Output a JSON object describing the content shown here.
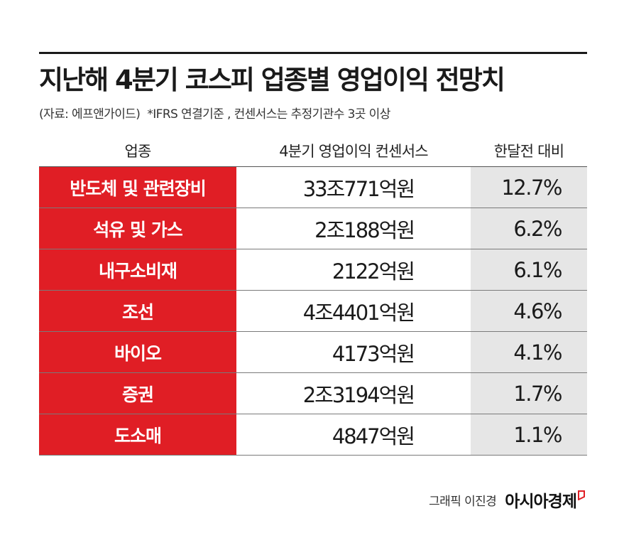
{
  "title": "지난해 4분기 코스피 업종별 영업이익 전망치",
  "source": "(자료: 에프앤가이드)",
  "note": "*IFRS 연결기준 , 컨센서스는 추정기관수 3곳 이상",
  "credit_graphic": "그래픽 이진경",
  "credit_brand": "아시아경제",
  "colors": {
    "category_bg": "#e01e25",
    "change_bg": "#e6e6e6",
    "rule": "#1a1a1a"
  },
  "chart_data": {
    "type": "table",
    "columns": [
      "업종",
      "4분기 영업이익 컨센서스",
      "한달전 대비"
    ],
    "rows": [
      {
        "category": "반도체 및 관련장비",
        "value": "33조771억원",
        "change": "12.7%"
      },
      {
        "category": "석유 및 가스",
        "value": "2조188억원",
        "change": "6.2%"
      },
      {
        "category": "내구소비재",
        "value": "2122억원",
        "change": "6.1%"
      },
      {
        "category": "조선",
        "value": "4조4401억원",
        "change": "4.6%"
      },
      {
        "category": "바이오",
        "value": "4173억원",
        "change": "4.1%"
      },
      {
        "category": "증권",
        "value": "2조3194억원",
        "change": "1.7%"
      },
      {
        "category": "도소매",
        "value": "4847억원",
        "change": "1.1%"
      }
    ]
  }
}
